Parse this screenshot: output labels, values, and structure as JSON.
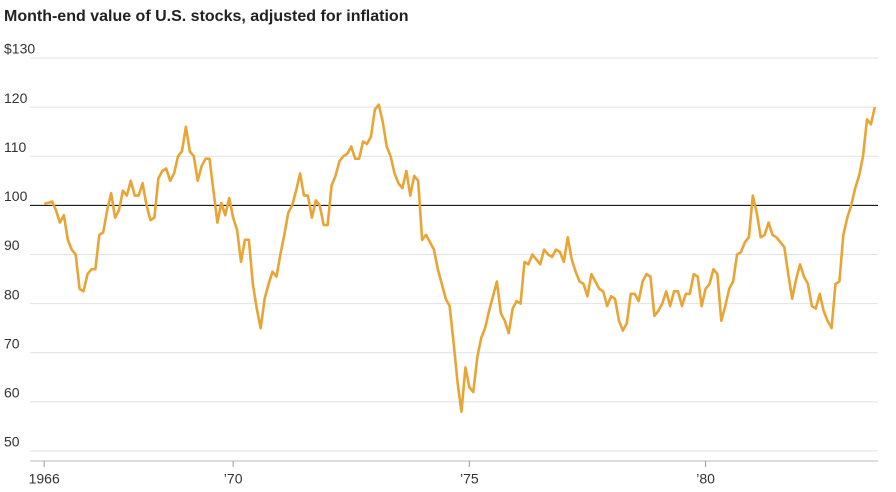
{
  "chart_data": {
    "type": "line",
    "title": "Month-end value of U.S. stocks, adjusted for inflation",
    "color": "#e8a535",
    "baseline": 100,
    "grid": true,
    "xlim": [
      1965.7,
      1983.65
    ],
    "ylim": [
      50,
      130
    ],
    "yticks": [
      50,
      60,
      70,
      80,
      90,
      100,
      110,
      120,
      {
        "value": 130,
        "label": "$130"
      }
    ],
    "xticks": [
      1966,
      {
        "value": 1970,
        "label": "’70"
      },
      {
        "value": 1975,
        "label": "’75"
      },
      {
        "value": 1980,
        "label": "’80"
      }
    ],
    "x": [
      1966,
      1966.083,
      1966.167,
      1966.25,
      1966.333,
      1966.417,
      1966.5,
      1966.583,
      1966.667,
      1966.75,
      1966.833,
      1966.917,
      1967,
      1967.083,
      1967.167,
      1967.25,
      1967.333,
      1967.417,
      1967.5,
      1967.583,
      1967.667,
      1967.75,
      1967.833,
      1967.917,
      1968,
      1968.083,
      1968.167,
      1968.25,
      1968.333,
      1968.417,
      1968.5,
      1968.583,
      1968.667,
      1968.75,
      1968.833,
      1968.917,
      1969,
      1969.083,
      1969.167,
      1969.25,
      1969.333,
      1969.417,
      1969.5,
      1969.583,
      1969.667,
      1969.75,
      1969.833,
      1969.917,
      1970,
      1970.083,
      1970.167,
      1970.25,
      1970.333,
      1970.417,
      1970.5,
      1970.583,
      1970.667,
      1970.75,
      1970.833,
      1970.917,
      1971,
      1971.083,
      1971.167,
      1971.25,
      1971.333,
      1971.417,
      1971.5,
      1971.583,
      1971.667,
      1971.75,
      1971.833,
      1971.917,
      1972,
      1972.083,
      1972.167,
      1972.25,
      1972.333,
      1972.417,
      1972.5,
      1972.583,
      1972.667,
      1972.75,
      1972.833,
      1972.917,
      1973,
      1973.083,
      1973.167,
      1973.25,
      1973.333,
      1973.417,
      1973.5,
      1973.583,
      1973.667,
      1973.75,
      1973.833,
      1973.917,
      1974,
      1974.083,
      1974.167,
      1974.25,
      1974.333,
      1974.417,
      1974.5,
      1974.583,
      1974.667,
      1974.75,
      1974.833,
      1974.917,
      1975,
      1975.083,
      1975.167,
      1975.25,
      1975.333,
      1975.417,
      1975.5,
      1975.583,
      1975.667,
      1975.75,
      1975.833,
      1975.917,
      1976,
      1976.083,
      1976.167,
      1976.25,
      1976.333,
      1976.417,
      1976.5,
      1976.583,
      1976.667,
      1976.75,
      1976.833,
      1976.917,
      1977,
      1977.083,
      1977.167,
      1977.25,
      1977.333,
      1977.417,
      1977.5,
      1977.583,
      1977.667,
      1977.75,
      1977.833,
      1977.917,
      1978,
      1978.083,
      1978.167,
      1978.25,
      1978.333,
      1978.417,
      1978.5,
      1978.583,
      1978.667,
      1978.75,
      1978.833,
      1978.917,
      1979,
      1979.083,
      1979.167,
      1979.25,
      1979.333,
      1979.417,
      1979.5,
      1979.583,
      1979.667,
      1979.75,
      1979.833,
      1979.917,
      1980,
      1980.083,
      1980.167,
      1980.25,
      1980.333,
      1980.417,
      1980.5,
      1980.583,
      1980.667,
      1980.75,
      1980.833,
      1980.917,
      1981,
      1981.083,
      1981.167,
      1981.25,
      1981.333,
      1981.417,
      1981.5,
      1981.583,
      1981.667,
      1981.75,
      1981.833,
      1981.917,
      1982,
      1982.083,
      1982.167,
      1982.25,
      1982.333,
      1982.417,
      1982.5,
      1982.583,
      1982.667,
      1982.75,
      1982.833,
      1982.917,
      1983,
      1983.083,
      1983.167,
      1983.25,
      1983.333,
      1983.417,
      1983.5,
      1983.583
    ],
    "values": [
      100.3,
      100.5,
      100.8,
      99,
      96.5,
      98,
      93,
      91,
      90,
      83,
      82.5,
      86,
      87,
      87,
      94,
      94.5,
      99,
      102.5,
      97.5,
      99,
      103,
      102,
      105,
      102,
      102,
      104.5,
      100,
      97,
      97.5,
      105.5,
      107,
      107.5,
      105,
      106.5,
      110,
      111,
      116,
      111,
      110,
      105,
      108,
      109.5,
      109.5,
      103,
      96.5,
      100.5,
      98,
      101.5,
      97.5,
      95,
      88.5,
      93,
      93,
      84,
      79,
      75,
      81,
      84,
      86.5,
      85.5,
      90,
      94,
      98.5,
      100,
      103,
      106.5,
      102,
      102,
      97.5,
      101,
      100,
      96,
      96,
      104,
      106,
      109,
      110,
      110.5,
      112,
      109.5,
      109.5,
      113,
      112.5,
      114,
      119.5,
      120.5,
      117,
      112,
      110,
      106.5,
      104.5,
      103.5,
      107,
      102,
      106,
      105,
      93,
      94,
      92.5,
      91,
      87,
      84,
      81,
      79.5,
      72,
      64,
      58,
      67,
      63,
      62,
      69,
      73,
      75,
      78.5,
      81.5,
      84.5,
      78,
      76.5,
      74,
      79,
      80.5,
      80,
      88.5,
      88,
      90,
      89,
      88,
      91,
      90,
      89.5,
      91,
      90.5,
      88.5,
      93.5,
      89,
      86.5,
      84.5,
      84,
      81.5,
      86,
      84.5,
      83,
      82.5,
      79.5,
      81.5,
      81,
      76.5,
      74.5,
      76,
      82,
      82,
      80.5,
      84.5,
      86,
      85.5,
      77.5,
      78.5,
      80,
      82.5,
      79.5,
      82.5,
      82.5,
      79.5,
      82,
      82,
      86,
      85.5,
      79.5,
      83,
      84,
      87,
      86,
      76.5,
      79.5,
      83,
      84.5,
      90,
      90.5,
      92.5,
      93.5,
      102,
      98.5,
      93.5,
      94,
      96.5,
      94,
      93.5,
      92.5,
      91.5,
      86,
      81,
      85,
      88,
      85.5,
      84,
      79.5,
      79,
      82,
      78.5,
      76.5,
      75,
      84,
      84.5,
      94,
      97.5,
      100,
      103.5,
      106,
      110,
      117.5,
      116.5,
      120
    ]
  }
}
